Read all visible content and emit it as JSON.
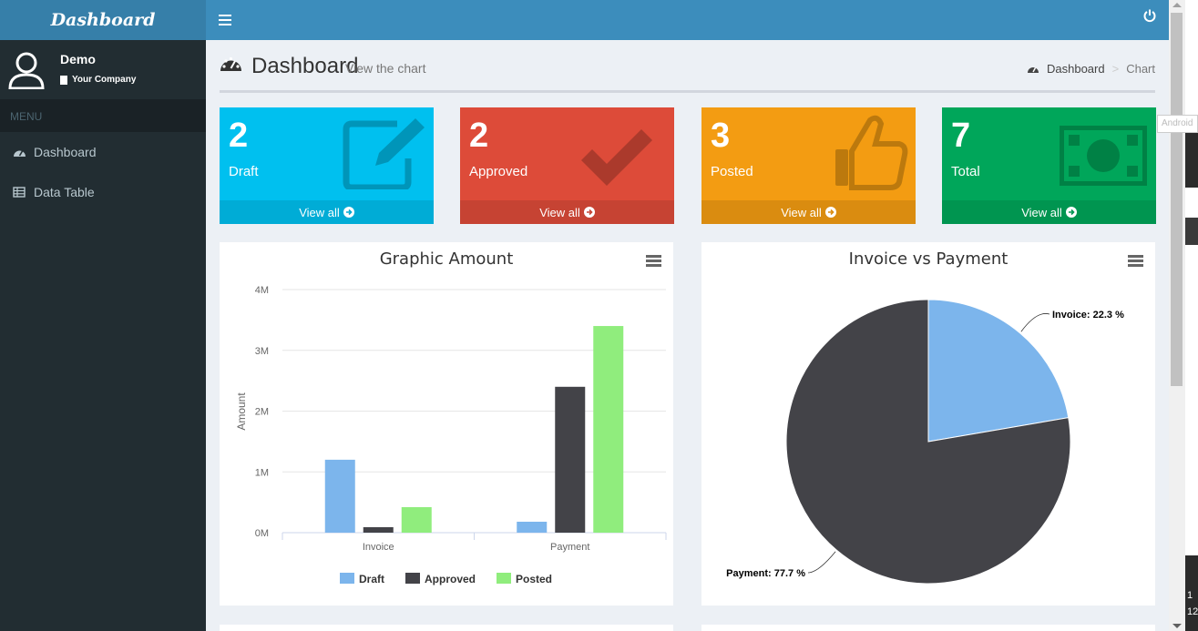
{
  "app": {
    "brand": "Dashboard"
  },
  "user": {
    "name": "Demo",
    "company": "Your Company"
  },
  "sidebar": {
    "header": "MENU",
    "items": [
      {
        "label": "Dashboard",
        "icon": "dashboard-icon"
      },
      {
        "label": "Data Table",
        "icon": "table-icon"
      }
    ]
  },
  "page": {
    "title": "Dashboard",
    "subtitle": "View the chart"
  },
  "breadcrumb": {
    "items": [
      "Dashboard",
      "Chart"
    ],
    "separator": ">"
  },
  "boxes": [
    {
      "count": "2",
      "label": "Draft",
      "footer": "View all",
      "color": "#00c0ef",
      "icon": "edit-icon"
    },
    {
      "count": "2",
      "label": "Approved",
      "footer": "View all",
      "color": "#dd4b39",
      "icon": "check-icon"
    },
    {
      "count": "3",
      "label": "Posted",
      "footer": "View all",
      "color": "#f39c12",
      "icon": "thumbs-up-icon"
    },
    {
      "count": "7",
      "label": "Total",
      "footer": "View all",
      "color": "#00a65a",
      "icon": "money-icon"
    }
  ],
  "tooltip": "Android",
  "clock": [
    "1",
    "12"
  ],
  "chart_data": [
    {
      "type": "bar",
      "title": "Graphic Amount",
      "xlabel": "",
      "ylabel": "Amount",
      "categories": [
        "Invoice",
        "Payment"
      ],
      "ylim": [
        0,
        4000000
      ],
      "yticks": [
        "0M",
        "1M",
        "2M",
        "3M",
        "4M"
      ],
      "grid": true,
      "legend": "bottom",
      "series": [
        {
          "name": "Draft",
          "color": "#7cb5ec",
          "values": [
            1200000,
            180000
          ]
        },
        {
          "name": "Approved",
          "color": "#434348",
          "values": [
            90000,
            2400000
          ]
        },
        {
          "name": "Posted",
          "color": "#90ed7d",
          "values": [
            420000,
            3400000
          ]
        }
      ]
    },
    {
      "type": "pie",
      "title": "Invoice vs Payment",
      "slices": [
        {
          "name": "Invoice",
          "value": 22.3,
          "label": "Invoice: 22.3 %",
          "color": "#7cb5ec"
        },
        {
          "name": "Payment",
          "value": 77.7,
          "label": "Payment: 77.7 %",
          "color": "#434348"
        }
      ]
    }
  ]
}
